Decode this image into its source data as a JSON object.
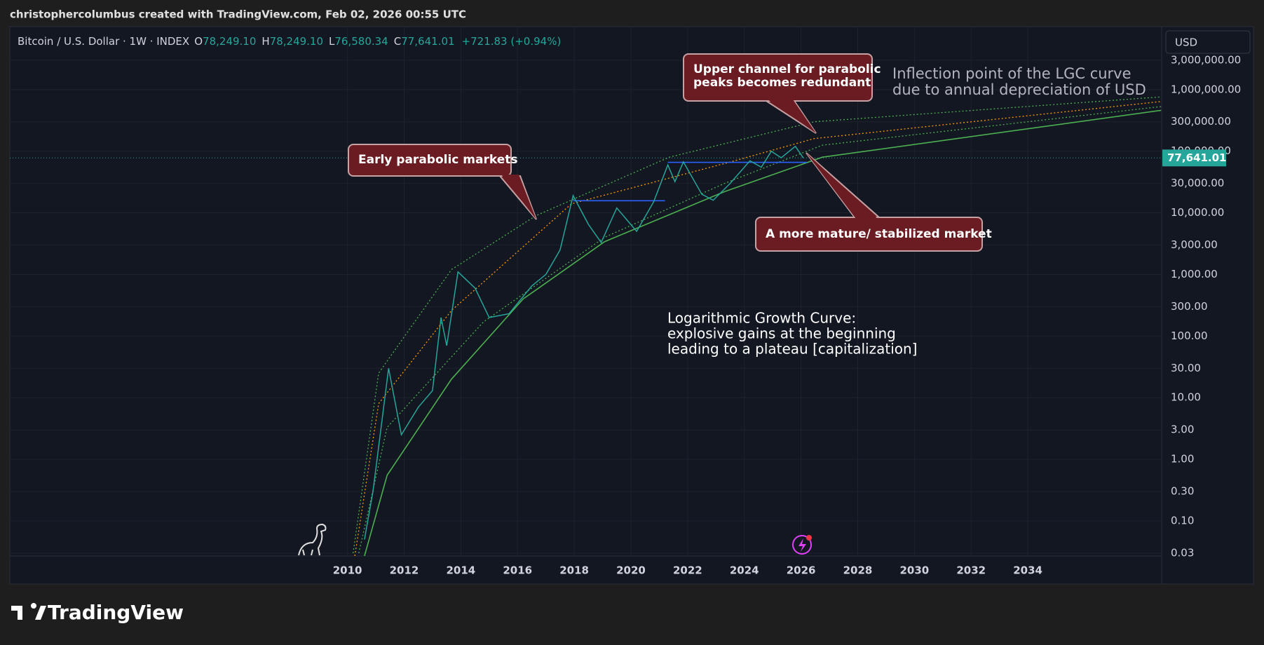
{
  "credit": "christophercolumbus created with TradingView.com, Feb 02, 2026 00:55 UTC",
  "watermark": "TradingView",
  "currency": "USD",
  "chart_data": {
    "type": "line",
    "symbol": "Bitcoin / U.S. Dollar · 1W · INDEX",
    "ohlc": [
      {
        "key": "O",
        "text": "78,249.10"
      },
      {
        "key": "H",
        "text": "78,249.10"
      },
      {
        "key": "L",
        "text": "76,580.34"
      },
      {
        "key": "C",
        "text": "77,641.01"
      }
    ],
    "change": "+721.83 (+0.94%)",
    "last_price": {
      "value": 77641.01,
      "label": "77,641.01"
    },
    "log_scale": true,
    "grid": true,
    "x": [
      2010.6,
      2010.9,
      2011.45,
      2011.9,
      2012.5,
      2013.0,
      2013.3,
      2013.5,
      2013.9,
      2014.5,
      2015.0,
      2015.7,
      2016.5,
      2017.0,
      2017.5,
      2017.96,
      2018.5,
      2018.95,
      2019.5,
      2020.2,
      2020.8,
      2021.3,
      2021.55,
      2021.85,
      2022.5,
      2022.9,
      2023.5,
      2024.2,
      2024.6,
      2024.95,
      2025.3,
      2025.8,
      2026.08
    ],
    "series": [
      {
        "color": "#26a69a",
        "values": [
          0.05,
          0.3,
          30,
          2.5,
          7,
          13,
          200,
          70,
          1100,
          600,
          200,
          230,
          650,
          1000,
          2500,
          19000,
          6500,
          3300,
          12000,
          5000,
          15000,
          60000,
          32000,
          67000,
          20000,
          16000,
          30000,
          70000,
          55000,
          100000,
          78000,
          120000,
          77641.01
        ]
      }
    ],
    "curves": [
      {
        "color": "#4caf50",
        "dashed": true,
        "x": [
          2010.2,
          2011.1,
          2013.67,
          2016.65,
          2021.35,
          2026.46,
          2038.7
        ],
        "values": [
          0.03,
          25,
          1200,
          9000,
          80000,
          300000,
          760000
        ]
      },
      {
        "color": "#ff9800",
        "dashed": true,
        "x": [
          2010.26,
          2011.1,
          2013.67,
          2017.9,
          2023.3,
          2026.46,
          2038.7
        ],
        "values": [
          0.027,
          8,
          260,
          14000,
          63000,
          160000,
          640000
        ]
      },
      {
        "color": "#4caf50",
        "dashed": true,
        "x": [
          2010.4,
          2011.4,
          2014.8,
          2019.07,
          2023.3,
          2026.75,
          2038.7
        ],
        "values": [
          0.03,
          3.3,
          170,
          4000,
          30000,
          125000,
          530000
        ]
      },
      {
        "color": "#4caf50",
        "dashed": false,
        "x": [
          2010.6,
          2011.4,
          2013.67,
          2016.2,
          2019.07,
          2023.3,
          2026.75,
          2038.7
        ],
        "values": [
          0.027,
          0.55,
          20,
          400,
          3400,
          22000,
          80000,
          460000
        ]
      }
    ],
    "levels": [
      {
        "color": "#2962ff",
        "x": [
          2017.96,
          2021.2
        ],
        "value": 15700
      },
      {
        "color": "#2962ff",
        "x": [
          2021.3,
          2026.2
        ],
        "value": 66000
      }
    ],
    "xlim": [
      1998.09,
      2038.72
    ],
    "xticks": [
      2010,
      2012,
      2014,
      2016,
      2018,
      2020,
      2022,
      2024,
      2026,
      2028,
      2030,
      2032,
      2034
    ],
    "ylim": [
      0.027,
      10500000
    ],
    "yticks": [
      {
        "value": 3000000,
        "label": "3,000,000.00"
      },
      {
        "value": 1000000,
        "label": "1,000,000.00"
      },
      {
        "value": 300000,
        "label": "300,000.00"
      },
      {
        "value": 100000,
        "label": "100,000.00"
      },
      {
        "value": 30000,
        "label": "30,000.00"
      },
      {
        "value": 10000,
        "label": "10,000.00"
      },
      {
        "value": 3000,
        "label": "3,000.00"
      },
      {
        "value": 1000,
        "label": "1,000.00"
      },
      {
        "value": 300,
        "label": "300.00"
      },
      {
        "value": 100,
        "label": "100.00"
      },
      {
        "value": 30,
        "label": "30.00"
      },
      {
        "value": 10,
        "label": "10.00"
      },
      {
        "value": 3,
        "label": "3.00"
      },
      {
        "value": 1,
        "label": "1.00"
      },
      {
        "value": 0.3,
        "label": "0.30"
      },
      {
        "value": 0.1,
        "label": "0.10"
      },
      {
        "value": 0.03,
        "label": "0.03"
      }
    ],
    "annotations": [
      {
        "callout": true,
        "text": [
          "Early parabolic markets"
        ]
      },
      {
        "callout": true,
        "text": [
          "Upper channel for parabolic",
          "peaks becomes redundant"
        ]
      },
      {
        "callout": true,
        "text": [
          "A more mature/ stabilized market"
        ]
      },
      {
        "callout": false,
        "text": [
          "Inflection point of the LGC curve",
          "due to annual depreciation of USD"
        ]
      },
      {
        "callout": false,
        "text": [
          "Logarithmic Growth Curve:",
          "explosive gains at the beginning",
          "leading to a plateau [capitalization]"
        ]
      }
    ]
  }
}
